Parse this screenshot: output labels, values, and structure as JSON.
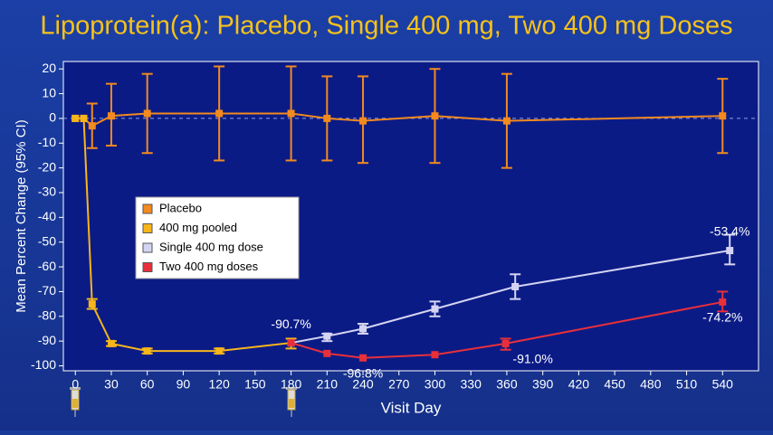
{
  "chart_data": {
    "type": "line",
    "title": "Lipoprotein(a): Placebo, Single 400 mg, Two 400 mg Doses",
    "x_label": "Visit Day",
    "y_label": "Mean Percent Change (95% CI)",
    "xlim": [
      -10,
      570
    ],
    "ylim": [
      -102,
      23
    ],
    "xticks": [
      0,
      30,
      60,
      90,
      120,
      150,
      180,
      210,
      240,
      270,
      300,
      330,
      360,
      390,
      420,
      450,
      480,
      510,
      540
    ],
    "yticks": [
      -100,
      -90,
      -80,
      -70,
      -60,
      -50,
      -40,
      -30,
      -20,
      -10,
      0,
      10,
      20
    ],
    "reference_line": 0,
    "legend": "center left",
    "series": [
      {
        "name": "Placebo",
        "color": "#f28a1e",
        "x": [
          0,
          7,
          14,
          30,
          60,
          120,
          180,
          210,
          240,
          300,
          360,
          540
        ],
        "values": [
          0,
          0,
          -3,
          1,
          2,
          2,
          2,
          0,
          -1,
          1,
          -1,
          1
        ],
        "lower": [
          null,
          null,
          -12,
          -11,
          -14,
          -17,
          -17,
          -17,
          -18,
          -18,
          -20,
          -14
        ],
        "upper": [
          null,
          null,
          6,
          14,
          18,
          21,
          21,
          17,
          17,
          20,
          18,
          16
        ]
      },
      {
        "name": "400 mg pooled",
        "color": "#f7b51c",
        "x": [
          0,
          7,
          14,
          30,
          60,
          120,
          180
        ],
        "values": [
          0,
          0,
          -75,
          -91,
          -94,
          -94,
          -90.7
        ],
        "lower": [
          null,
          null,
          -77,
          -92,
          -95,
          -95,
          -93
        ],
        "upper": [
          null,
          null,
          -73,
          -90,
          -93,
          -93,
          -89
        ],
        "value_labels": [
          null,
          null,
          null,
          null,
          null,
          null,
          "-90.7%"
        ]
      },
      {
        "name": "Single 400 mg dose",
        "color": "#d4d4f2",
        "x": [
          180,
          210,
          240,
          300,
          367,
          546
        ],
        "values": [
          -90.7,
          -88,
          -85,
          -77,
          -68,
          -53.4
        ],
        "lower": [
          null,
          -90,
          -87,
          -80,
          -73,
          -59
        ],
        "upper": [
          null,
          -87,
          -83,
          -74,
          -63,
          -47
        ],
        "value_labels": [
          null,
          null,
          null,
          null,
          null,
          "-53.4%"
        ]
      },
      {
        "name": "Two 400 mg doses",
        "color": "#e8303a",
        "x": [
          180,
          210,
          240,
          300,
          359,
          540
        ],
        "values": [
          -90.7,
          -95,
          -96.8,
          -95.5,
          -91,
          -74.2
        ],
        "lower": [
          null,
          null,
          null,
          null,
          -93.5,
          -78
        ],
        "upper": [
          null,
          null,
          null,
          null,
          -89,
          -70
        ],
        "value_labels": [
          null,
          null,
          "-96.8%",
          null,
          "-91.0%",
          "-74.2%"
        ]
      }
    ]
  }
}
